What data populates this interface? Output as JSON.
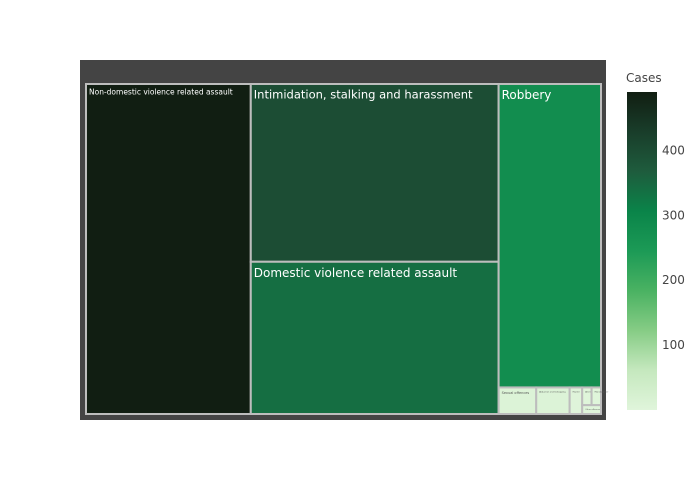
{
  "chart_data": {
    "type": "treemap",
    "value_label": "Cases",
    "colorbar": {
      "title": "Cases",
      "ticks": [
        100,
        200,
        300,
        400
      ],
      "range": [
        0,
        490
      ],
      "colors": [
        "#e0f5db",
        "#c5e8be",
        "#86cc85",
        "#4ab262",
        "#1c9a56",
        "#0a8449",
        "#1e5c3d",
        "#193d2a",
        "#111e12"
      ]
    },
    "items": [
      {
        "label": "Non-domestic violence related assault",
        "value": 490
      },
      {
        "label": "Intimidation, stalking and harassment",
        "value": 397
      },
      {
        "label": "Domestic violence related assault",
        "value": 340
      },
      {
        "label": "Robbery",
        "value": 280
      },
      {
        "label": "Sexual offences",
        "value": 9
      },
      {
        "label": "Abduction and kidnapping",
        "value": 8
      },
      {
        "label": "Murder",
        "value": 3
      },
      {
        "label": "Attempted murder",
        "value": 1.5
      },
      {
        "label": "Manslaughter",
        "value": 1.5
      },
      {
        "label": "Other offences",
        "value": 1.5
      }
    ]
  }
}
